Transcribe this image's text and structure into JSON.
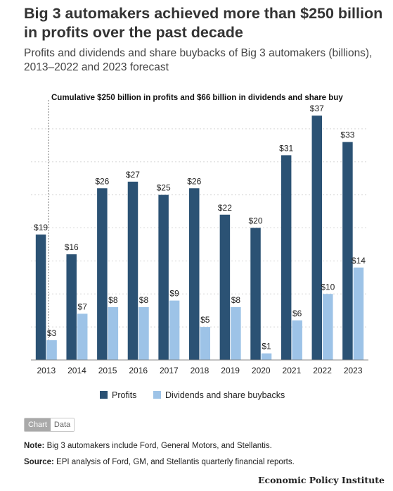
{
  "title": "Big 3 automakers achieved more than $250 billion in profits over the past decade",
  "subtitle": "Profits and dividends and share buybacks of Big 3 automakers (billions), 2013–2022 and 2023 forecast",
  "chart_data": {
    "type": "bar",
    "categories": [
      "2013",
      "2014",
      "2015",
      "2016",
      "2017",
      "2018",
      "2019",
      "2020",
      "2021",
      "2022",
      "2023"
    ],
    "series": [
      {
        "name": "Profits",
        "values": [
          19,
          16,
          26,
          27,
          25,
          26,
          22,
          20,
          31,
          37,
          33
        ],
        "labels": [
          "$19",
          "$16",
          "$26",
          "$27",
          "$25",
          "$26",
          "$22",
          "$20",
          "$31",
          "$37",
          "$33"
        ]
      },
      {
        "name": "Dividends and share buybacks",
        "values": [
          3,
          7,
          8,
          8,
          9,
          5,
          8,
          1,
          6,
          10,
          14
        ],
        "labels": [
          "$3",
          "$7",
          "$8",
          "$8",
          "$9",
          "$5",
          "$8",
          "$1",
          "$6",
          "$10",
          "$14"
        ]
      }
    ],
    "colors": {
      "Profits": "#2b5274",
      "Dividends and share buybacks": "#9dc3e7"
    },
    "annotation": "Cumulative $250 billion in profits and $66 billion in dividends and share buy",
    "ylim": [
      0,
      40
    ],
    "grid": true,
    "legend_position": "bottom"
  },
  "toggle": {
    "chart_label": "Chart",
    "data_label": "Data"
  },
  "note": {
    "label": "Note:",
    "text": " Big 3 automakers include Ford, General Motors, and Stellantis."
  },
  "source": {
    "label": "Source:",
    "text": " EPI analysis of Ford, GM, and Stellantis quarterly financial reports."
  },
  "brand": "Economic Policy Institute"
}
